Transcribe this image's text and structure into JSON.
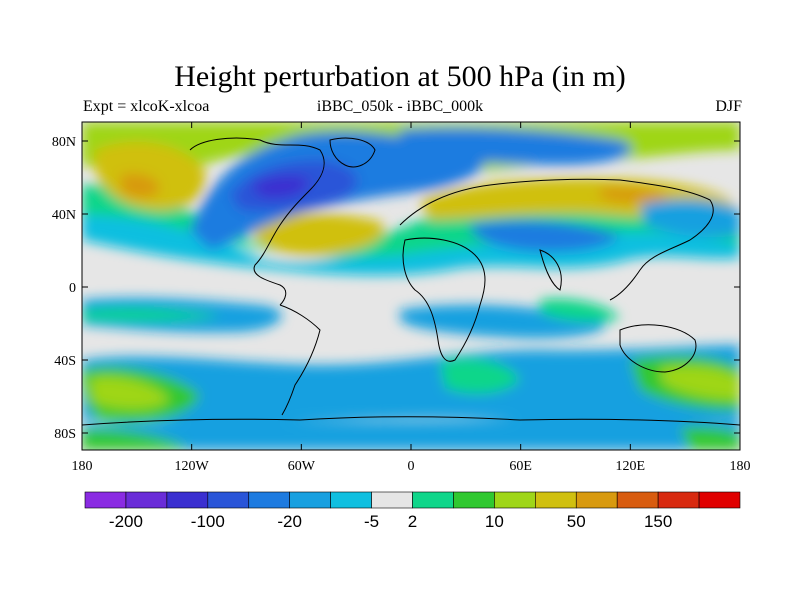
{
  "title": "Height perturbation at 500 hPa (in m)",
  "left_label": "Expt = xlcoK-xlcoa",
  "center_label": "iBBC_050k - iBBC_000k",
  "right_label": "DJF",
  "lat_labels": [
    "80N",
    "40N",
    "0",
    "40S",
    "80S"
  ],
  "lon_labels": [
    "180",
    "120W",
    "60W",
    "0",
    "60E",
    "120E",
    "180"
  ],
  "colorbar": {
    "colors": [
      "#8a2be2",
      "#6a2cd8",
      "#3a2fd0",
      "#2a55d8",
      "#1e7be0",
      "#18a0e0",
      "#10bfe0",
      "#e6e6e6",
      "#10d68a",
      "#30c830",
      "#9fd618",
      "#d0c010",
      "#d89a10",
      "#d85c10",
      "#d82a10",
      "#e00000"
    ],
    "labels": [
      {
        "text": "-200",
        "index": 1
      },
      {
        "text": "-100",
        "index": 3
      },
      {
        "text": "-20",
        "index": 5
      },
      {
        "text": "-5",
        "index": 7
      },
      {
        "text": "2",
        "index": 8
      },
      {
        "text": "10",
        "index": 10
      },
      {
        "text": "50",
        "index": 12
      },
      {
        "text": "150",
        "index": 14
      }
    ]
  }
}
